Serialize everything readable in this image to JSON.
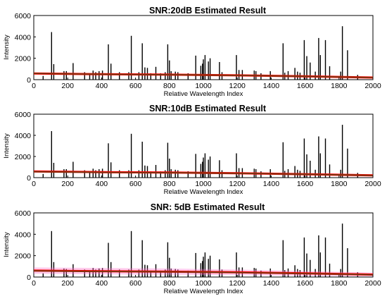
{
  "chart_data": [
    {
      "type": "line",
      "title": "SNR:20dB Estimated Result",
      "xlabel": "Relative Wavelength Index",
      "ylabel": "Intensity",
      "xlim": [
        0,
        2000
      ],
      "ylim": [
        0,
        6000
      ],
      "xticks": [
        "0",
        "200",
        "400",
        "600",
        "800",
        "1000",
        "1200",
        "1400",
        "1600",
        "1800",
        "2000"
      ],
      "yticks": [
        "0",
        "2000",
        "4000",
        "6000"
      ],
      "grid": false,
      "series": [
        {
          "kind": "stem",
          "color": "#000000",
          "points": [
            [
              55,
              350
            ],
            [
              105,
              4450
            ],
            [
              118,
              1450
            ],
            [
              178,
              800
            ],
            [
              192,
              800
            ],
            [
              232,
              1550
            ],
            [
              300,
              700
            ],
            [
              330,
              600
            ],
            [
              350,
              850
            ],
            [
              365,
              700
            ],
            [
              385,
              800
            ],
            [
              405,
              850
            ],
            [
              440,
              3300
            ],
            [
              455,
              1500
            ],
            [
              505,
              700
            ],
            [
              560,
              700
            ],
            [
              575,
              4100
            ],
            [
              620,
              700
            ],
            [
              640,
              3400
            ],
            [
              655,
              1150
            ],
            [
              670,
              1100
            ],
            [
              690,
              600
            ],
            [
              720,
              1200
            ],
            [
              748,
              600
            ],
            [
              775,
              700
            ],
            [
              790,
              3300
            ],
            [
              800,
              1800
            ],
            [
              810,
              800
            ],
            [
              835,
              750
            ],
            [
              850,
              700
            ],
            [
              910,
              600
            ],
            [
              955,
              2250
            ],
            [
              985,
              1300
            ],
            [
              995,
              1500
            ],
            [
              1000,
              1900
            ],
            [
              1010,
              2300
            ],
            [
              1030,
              1700
            ],
            [
              1040,
              2000
            ],
            [
              1095,
              1650
            ],
            [
              1110,
              700
            ],
            [
              1195,
              2300
            ],
            [
              1210,
              900
            ],
            [
              1230,
              900
            ],
            [
              1300,
              850
            ],
            [
              1310,
              800
            ],
            [
              1340,
              600
            ],
            [
              1395,
              800
            ],
            [
              1470,
              3400
            ],
            [
              1480,
              650
            ],
            [
              1500,
              800
            ],
            [
              1540,
              1100
            ],
            [
              1555,
              750
            ],
            [
              1570,
              650
            ],
            [
              1595,
              3700
            ],
            [
              1610,
              2200
            ],
            [
              1630,
              1600
            ],
            [
              1660,
              750
            ],
            [
              1680,
              3900
            ],
            [
              1690,
              2300
            ],
            [
              1720,
              3700
            ],
            [
              1745,
              1250
            ],
            [
              1810,
              750
            ],
            [
              1820,
              5000
            ],
            [
              1850,
              2750
            ],
            [
              1910,
              450
            ]
          ]
        },
        {
          "kind": "band",
          "name": "",
          "color": "#ff69c8",
          "x": [
            0,
            400,
            800,
            1200,
            1600,
            2000
          ],
          "upper": [
            630,
            560,
            520,
            450,
            360,
            250
          ],
          "lower": [
            530,
            460,
            420,
            350,
            260,
            150
          ]
        },
        {
          "kind": "line",
          "color": "#ff0000",
          "x": [
            0,
            400,
            800,
            1200,
            1600,
            2000
          ],
          "y": [
            580,
            510,
            470,
            400,
            310,
            200
          ]
        },
        {
          "kind": "line",
          "color": "#6b3a10",
          "x": [
            0,
            400,
            800,
            1200,
            1600,
            2000
          ],
          "y": [
            580,
            510,
            470,
            400,
            310,
            200
          ]
        }
      ]
    },
    {
      "type": "line",
      "title": "SNR:10dB Estimated Result",
      "xlabel": "Relative Wavelength Index",
      "ylabel": "Intensity",
      "xlim": [
        0,
        2000
      ],
      "ylim": [
        0,
        6000
      ],
      "xticks": [
        "0",
        "200",
        "400",
        "600",
        "800",
        "1000",
        "1200",
        "1400",
        "1600",
        "1800",
        "2000"
      ],
      "yticks": [
        "0",
        "2000",
        "4000",
        "6000"
      ],
      "grid": false,
      "series": [
        {
          "kind": "stem",
          "color": "#000000",
          "points": [
            [
              55,
              350
            ],
            [
              105,
              4400
            ],
            [
              118,
              1400
            ],
            [
              178,
              800
            ],
            [
              192,
              800
            ],
            [
              232,
              1500
            ],
            [
              300,
              700
            ],
            [
              330,
              600
            ],
            [
              350,
              850
            ],
            [
              365,
              700
            ],
            [
              385,
              800
            ],
            [
              405,
              850
            ],
            [
              440,
              3250
            ],
            [
              455,
              1450
            ],
            [
              505,
              700
            ],
            [
              560,
              700
            ],
            [
              575,
              4150
            ],
            [
              620,
              700
            ],
            [
              640,
              3400
            ],
            [
              655,
              1150
            ],
            [
              670,
              1100
            ],
            [
              690,
              600
            ],
            [
              720,
              1200
            ],
            [
              748,
              600
            ],
            [
              775,
              700
            ],
            [
              790,
              3300
            ],
            [
              800,
              1800
            ],
            [
              810,
              800
            ],
            [
              835,
              750
            ],
            [
              850,
              700
            ],
            [
              910,
              600
            ],
            [
              955,
              2250
            ],
            [
              985,
              1300
            ],
            [
              995,
              1500
            ],
            [
              1000,
              1900
            ],
            [
              1010,
              2300
            ],
            [
              1030,
              1700
            ],
            [
              1040,
              2000
            ],
            [
              1095,
              1650
            ],
            [
              1110,
              700
            ],
            [
              1195,
              2300
            ],
            [
              1210,
              900
            ],
            [
              1230,
              900
            ],
            [
              1300,
              850
            ],
            [
              1310,
              800
            ],
            [
              1340,
              600
            ],
            [
              1395,
              800
            ],
            [
              1470,
              3350
            ],
            [
              1480,
              650
            ],
            [
              1500,
              800
            ],
            [
              1540,
              1100
            ],
            [
              1555,
              750
            ],
            [
              1570,
              650
            ],
            [
              1595,
              3700
            ],
            [
              1610,
              2200
            ],
            [
              1630,
              1600
            ],
            [
              1660,
              750
            ],
            [
              1680,
              3900
            ],
            [
              1690,
              2300
            ],
            [
              1720,
              3700
            ],
            [
              1745,
              1250
            ],
            [
              1810,
              750
            ],
            [
              1820,
              5000
            ],
            [
              1850,
              2750
            ],
            [
              1910,
              450
            ]
          ]
        },
        {
          "kind": "band",
          "name": "",
          "color": "#ff69c8",
          "x": [
            0,
            400,
            800,
            1200,
            1600,
            2000
          ],
          "upper": [
            680,
            620,
            580,
            520,
            430,
            320
          ],
          "lower": [
            480,
            420,
            380,
            320,
            230,
            120
          ]
        },
        {
          "kind": "line",
          "color": "#ff0000",
          "x": [
            0,
            400,
            800,
            1200,
            1600,
            2000
          ],
          "y": [
            580,
            520,
            480,
            420,
            330,
            220
          ]
        },
        {
          "kind": "line",
          "color": "#6b3a10",
          "x": [
            0,
            400,
            800,
            1200,
            1600,
            2000
          ],
          "y": [
            560,
            500,
            470,
            410,
            320,
            210
          ]
        }
      ]
    },
    {
      "type": "line",
      "title": "SNR: 5dB Estimated Result",
      "xlabel": "Relative Wavelength Index",
      "ylabel": "Intensity",
      "xlim": [
        0,
        2000
      ],
      "ylim": [
        0,
        6000
      ],
      "xticks": [
        "0",
        "200",
        "400",
        "600",
        "800",
        "1000",
        "1200",
        "1400",
        "1600",
        "1800",
        "2000"
      ],
      "yticks": [
        "0",
        "2000",
        "4000",
        "6000"
      ],
      "grid": false,
      "series": [
        {
          "kind": "stem",
          "color": "#000000",
          "points": [
            [
              55,
              350
            ],
            [
              105,
              4300
            ],
            [
              118,
              1400
            ],
            [
              178,
              800
            ],
            [
              192,
              750
            ],
            [
              232,
              1200
            ],
            [
              300,
              700
            ],
            [
              330,
              600
            ],
            [
              350,
              850
            ],
            [
              365,
              700
            ],
            [
              385,
              800
            ],
            [
              405,
              850
            ],
            [
              440,
              3200
            ],
            [
              455,
              1400
            ],
            [
              505,
              700
            ],
            [
              560,
              700
            ],
            [
              575,
              4300
            ],
            [
              620,
              700
            ],
            [
              640,
              3450
            ],
            [
              655,
              1150
            ],
            [
              670,
              1100
            ],
            [
              690,
              600
            ],
            [
              720,
              1200
            ],
            [
              748,
              600
            ],
            [
              775,
              700
            ],
            [
              790,
              3250
            ],
            [
              800,
              1800
            ],
            [
              810,
              800
            ],
            [
              835,
              750
            ],
            [
              850,
              700
            ],
            [
              910,
              600
            ],
            [
              955,
              2250
            ],
            [
              985,
              1300
            ],
            [
              995,
              1500
            ],
            [
              1000,
              1900
            ],
            [
              1010,
              2300
            ],
            [
              1030,
              1700
            ],
            [
              1040,
              2000
            ],
            [
              1095,
              1650
            ],
            [
              1110,
              700
            ],
            [
              1195,
              2300
            ],
            [
              1210,
              900
            ],
            [
              1230,
              900
            ],
            [
              1300,
              850
            ],
            [
              1310,
              800
            ],
            [
              1340,
              600
            ],
            [
              1395,
              800
            ],
            [
              1470,
              3450
            ],
            [
              1480,
              650
            ],
            [
              1500,
              800
            ],
            [
              1540,
              1100
            ],
            [
              1555,
              750
            ],
            [
              1570,
              650
            ],
            [
              1595,
              3700
            ],
            [
              1610,
              2200
            ],
            [
              1630,
              1600
            ],
            [
              1660,
              750
            ],
            [
              1680,
              3900
            ],
            [
              1690,
              2300
            ],
            [
              1720,
              3700
            ],
            [
              1745,
              1250
            ],
            [
              1810,
              750
            ],
            [
              1820,
              5000
            ],
            [
              1850,
              2700
            ],
            [
              1910,
              450
            ]
          ]
        },
        {
          "kind": "band",
          "name": "",
          "color": "#ff69c8",
          "x": [
            0,
            400,
            800,
            1200,
            1600,
            2000
          ],
          "upper": [
            900,
            850,
            800,
            700,
            560,
            420
          ],
          "lower": [
            300,
            250,
            220,
            180,
            120,
            60
          ]
        },
        {
          "kind": "line",
          "color": "#ff0000",
          "x": [
            0,
            400,
            800,
            1200,
            1600,
            2000
          ],
          "y": [
            600,
            540,
            500,
            440,
            340,
            230
          ]
        },
        {
          "kind": "line",
          "color": "#6b3a10",
          "x": [
            0,
            400,
            800,
            1200,
            1600,
            2000
          ],
          "y": [
            580,
            520,
            490,
            420,
            330,
            220
          ]
        }
      ]
    }
  ]
}
